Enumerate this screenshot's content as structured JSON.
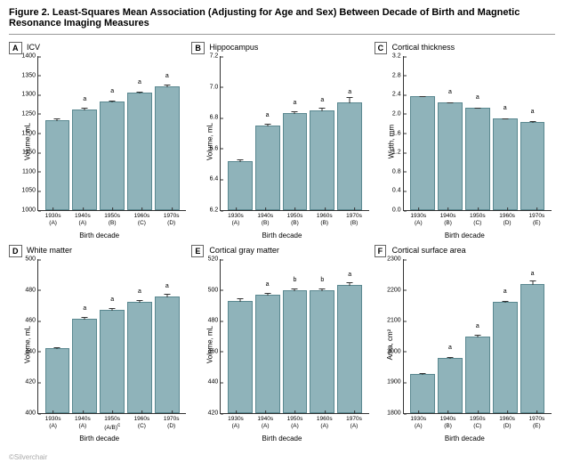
{
  "figure_title": "Figure 2. Least-Squares Mean Association (Adjusting for Age and Sex) Between Decade of Birth and Magnetic Resonance Imaging Measures",
  "bar_color": "#8fb3ba",
  "bar_border": "#5a8890",
  "xlabel": "Birth decade",
  "watermark": "©Silverchair",
  "panels": [
    {
      "tag": "A",
      "title": "ICV",
      "ylabel": "Volume, mL",
      "ymin": 1000,
      "ymax": 1400,
      "ystep": 50,
      "cats": [
        "1930s\n(A)",
        "1940s\n(A)",
        "1950s\n(B)",
        "1960s\n(C)",
        "1970s\n(D)"
      ],
      "vals": [
        1234,
        1262,
        1282,
        1306,
        1322
      ],
      "errs": [
        10,
        8,
        7,
        6,
        8
      ],
      "ann": [
        "",
        "a",
        "a",
        "a",
        "a"
      ]
    },
    {
      "tag": "B",
      "title": "Hippocampus",
      "ylabel": "Volume, mL",
      "ymin": 6.2,
      "ymax": 7.2,
      "ystep": 0.2,
      "cats": [
        "1930s\n(A)",
        "1940s\n(B)",
        "1950s\n(B)",
        "1960s\n(B)",
        "1970s\n(B)"
      ],
      "vals": [
        6.52,
        6.75,
        6.83,
        6.85,
        6.9
      ],
      "errs": [
        0.05,
        0.03,
        0.03,
        0.03,
        0.06
      ],
      "ann": [
        "",
        "a",
        "a",
        "a",
        "a"
      ]
    },
    {
      "tag": "C",
      "title": "Cortical thickness",
      "ylabel": "Width, mm",
      "ymin": 0,
      "ymax": 3.2,
      "ystep": 0.4,
      "cats": [
        "1930s\n(A)",
        "1940s\n(B)",
        "1950s\n(C)",
        "1960s\n(D)",
        "1970s\n(E)"
      ],
      "vals": [
        2.36,
        2.24,
        2.12,
        1.9,
        1.84
      ],
      "errs": [
        0.03,
        0.03,
        0.03,
        0.03,
        0.04
      ],
      "ann": [
        "",
        "a",
        "a",
        "a",
        "a"
      ]
    },
    {
      "tag": "D",
      "title": "White matter",
      "ylabel": "Volume, mL",
      "ymin": 400,
      "ymax": 500,
      "ystep": 20,
      "cats": [
        "1930s\n(A)",
        "1940s\n(A)",
        "1950s\n(A/B)",
        "1960s\n(C)",
        "1970s\n(D)"
      ],
      "vals": [
        442,
        461,
        467,
        472,
        476
      ],
      "errs": [
        4,
        3,
        3,
        3,
        3
      ],
      "ann": [
        "",
        "a",
        "a",
        "a",
        "a"
      ],
      "cat_suffix": [
        "",
        "",
        "c",
        "",
        ""
      ]
    },
    {
      "tag": "E",
      "title": "Cortical gray matter",
      "ylabel": "Volume, mL",
      "ymin": 420,
      "ymax": 520,
      "ystep": 20,
      "cats": [
        "1930s\n(A)",
        "1940s\n(A)",
        "1950s\n(A)",
        "1960s\n(A)",
        "1970s\n(A)"
      ],
      "vals": [
        493,
        497,
        500,
        500,
        503
      ],
      "errs": [
        3,
        2,
        2,
        2,
        3
      ],
      "ann": [
        "",
        "a",
        "b",
        "b",
        "a"
      ]
    },
    {
      "tag": "F",
      "title": "Cortical surface area",
      "ylabel": "Area, cm²",
      "ymin": 1800,
      "ymax": 2300,
      "ystep": 100,
      "cats": [
        "1930s\n(A)",
        "1940s\n(B)",
        "1950s\n(C)",
        "1960s\n(D)",
        "1970s\n(E)"
      ],
      "vals": [
        1928,
        1980,
        2050,
        2160,
        2220
      ],
      "errs": [
        15,
        12,
        12,
        12,
        15
      ],
      "ann": [
        "",
        "a",
        "a",
        "a",
        "a"
      ]
    }
  ]
}
